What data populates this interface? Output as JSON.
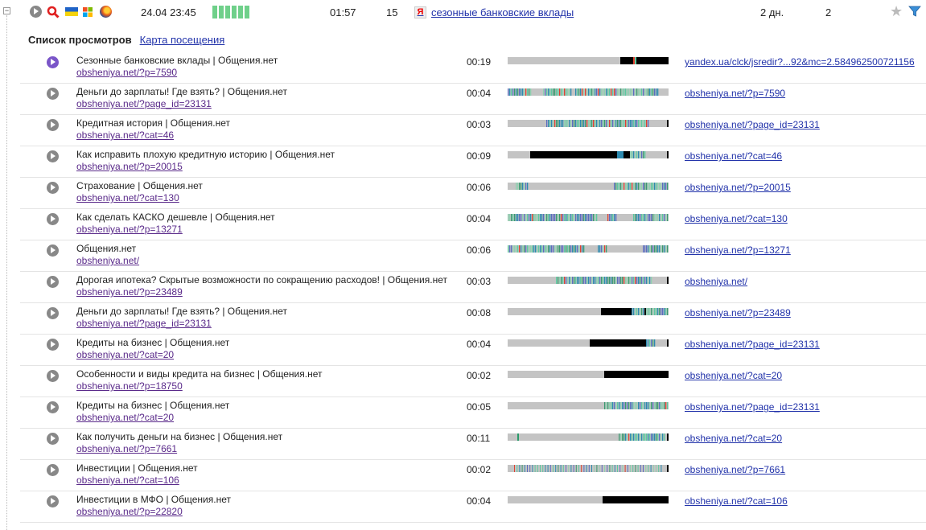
{
  "session": {
    "date": "24.04 23:45",
    "duration": "01:57",
    "depth": "15",
    "source": "сезонные банковские вклады",
    "days": "2 дн.",
    "count": "2",
    "activity_bars": 6,
    "colors": {
      "activity": "#6fd08a",
      "link": "#2233aa",
      "visited": "#5a2a8a"
    }
  },
  "tabs": {
    "active": "Список просмотров",
    "link": "Карта посещения"
  },
  "visits": [
    {
      "title": "Сезонные банковские вклады | Общения.нет",
      "url": "obsheniya.net/?p=7590",
      "time": "00:19",
      "referrer": "yandex.ua/clck/jsredir?...92&mc=2.584962500721156",
      "active": true,
      "bar": [
        [
          0.7,
          0.78,
          "#000"
        ],
        [
          0.78,
          0.79,
          "#e04030"
        ],
        [
          0.79,
          0.8,
          "#5cc9a0"
        ],
        [
          0.8,
          1.0,
          "#000"
        ]
      ]
    },
    {
      "title": "Деньги до зарплаты! Где взять? | Общения.нет",
      "url": "obsheniya.net/?page_id=23131",
      "time": "00:04",
      "referrer": "obsheniya.net/?p=7590",
      "bar": [
        [
          0.0,
          0.14,
          "stripes"
        ],
        [
          0.22,
          0.4,
          "stripes"
        ],
        [
          0.42,
          0.94,
          "stripes"
        ]
      ]
    },
    {
      "title": "Кредитная история | Общения.нет",
      "url": "obsheniya.net/?cat=46",
      "time": "00:03",
      "referrer": "obsheniya.net/?page_id=23131",
      "bar": [
        [
          0.24,
          0.88,
          "stripes"
        ],
        [
          0.99,
          1.0,
          "#000"
        ]
      ]
    },
    {
      "title": "Как исправить плохую кредитную историю | Общения.нет",
      "url": "obsheniya.net/?p=20015",
      "time": "00:09",
      "referrer": "obsheniya.net/?cat=46",
      "bar": [
        [
          0.14,
          0.68,
          "#000"
        ],
        [
          0.68,
          0.72,
          "#2c8ab0"
        ],
        [
          0.72,
          0.76,
          "#000"
        ],
        [
          0.76,
          0.86,
          "stripes"
        ],
        [
          0.99,
          1.0,
          "#000"
        ]
      ]
    },
    {
      "title": "Страхование | Общения.нет",
      "url": "obsheniya.net/?cat=130",
      "time": "00:06",
      "referrer": "obsheniya.net/?p=20015",
      "bar": [
        [
          0.05,
          0.13,
          "stripes"
        ],
        [
          0.66,
          1.0,
          "stripes"
        ]
      ]
    },
    {
      "title": "Как сделать КАСКО дешевле | Общения.нет",
      "url": "obsheniya.net/?p=13271",
      "time": "00:04",
      "referrer": "obsheniya.net/?cat=130",
      "bar": [
        [
          0.0,
          0.55,
          "stripes"
        ],
        [
          0.62,
          0.68,
          "stripes"
        ],
        [
          0.78,
          1.0,
          "stripes"
        ]
      ]
    },
    {
      "title": "Общения.нет",
      "url": "obsheniya.net/",
      "time": "00:06",
      "referrer": "obsheniya.net/?p=13271",
      "bar": [
        [
          0.0,
          0.48,
          "stripes"
        ],
        [
          0.56,
          0.62,
          "stripes"
        ],
        [
          0.84,
          1.0,
          "stripes"
        ]
      ]
    },
    {
      "title": "Дорогая ипотека? Скрытые возможности по сокращению расходов! | Общения.нет",
      "url": "obsheniya.net/?p=23489",
      "time": "00:03",
      "referrer": "obsheniya.net/",
      "bar": [
        [
          0.3,
          0.9,
          "stripes"
        ],
        [
          0.99,
          1.0,
          "#000"
        ]
      ]
    },
    {
      "title": "Деньги до зарплаты! Где взять? | Общения.нет",
      "url": "obsheniya.net/?page_id=23131",
      "time": "00:08",
      "referrer": "obsheniya.net/?p=23489",
      "bar": [
        [
          0.58,
          0.77,
          "#000"
        ],
        [
          0.77,
          0.85,
          "stripes"
        ],
        [
          0.85,
          0.86,
          "#000"
        ],
        [
          0.86,
          1.0,
          "stripes"
        ]
      ]
    },
    {
      "title": "Кредиты на бизнес | Общения.нет",
      "url": "obsheniya.net/?cat=20",
      "time": "00:04",
      "referrer": "obsheniya.net/?page_id=23131",
      "bar": [
        [
          0.51,
          0.86,
          "#000"
        ],
        [
          0.86,
          0.92,
          "stripes"
        ],
        [
          0.99,
          1.0,
          "#000"
        ]
      ]
    },
    {
      "title": "Особенности и виды кредита на бизнес | Общения.нет",
      "url": "obsheniya.net/?p=18750",
      "time": "00:02",
      "referrer": "obsheniya.net/?cat=20",
      "bar": [
        [
          0.6,
          1.0,
          "#000"
        ]
      ]
    },
    {
      "title": "Кредиты на бизнес | Общения.нет",
      "url": "obsheniya.net/?cat=20",
      "time": "00:05",
      "referrer": "obsheniya.net/?page_id=23131",
      "bar": [
        [
          0.6,
          1.0,
          "stripes"
        ]
      ]
    },
    {
      "title": "Как получить деньги на бизнес | Общения.нет",
      "url": "obsheniya.net/?p=7661",
      "time": "00:11",
      "referrer": "obsheniya.net/?cat=20",
      "bar": [
        [
          0.06,
          0.07,
          "#2a9a6a"
        ],
        [
          0.69,
          0.98,
          "stripes"
        ],
        [
          0.99,
          1.0,
          "#000"
        ]
      ]
    },
    {
      "title": "Инвестиции | Общения.нет",
      "url": "obsheniya.net/?cat=106",
      "time": "00:02",
      "referrer": "obsheniya.net/?p=7661",
      "bar": [
        [
          0.04,
          0.96,
          "stripes_sparse"
        ],
        [
          0.99,
          1.0,
          "#000"
        ]
      ]
    },
    {
      "title": "Инвестиции в МФО | Общения.нет",
      "url": "obsheniya.net/?p=22820",
      "time": "00:04",
      "referrer": "obsheniya.net/?cat=106",
      "bar": [
        [
          0.59,
          1.0,
          "#000"
        ]
      ]
    }
  ]
}
